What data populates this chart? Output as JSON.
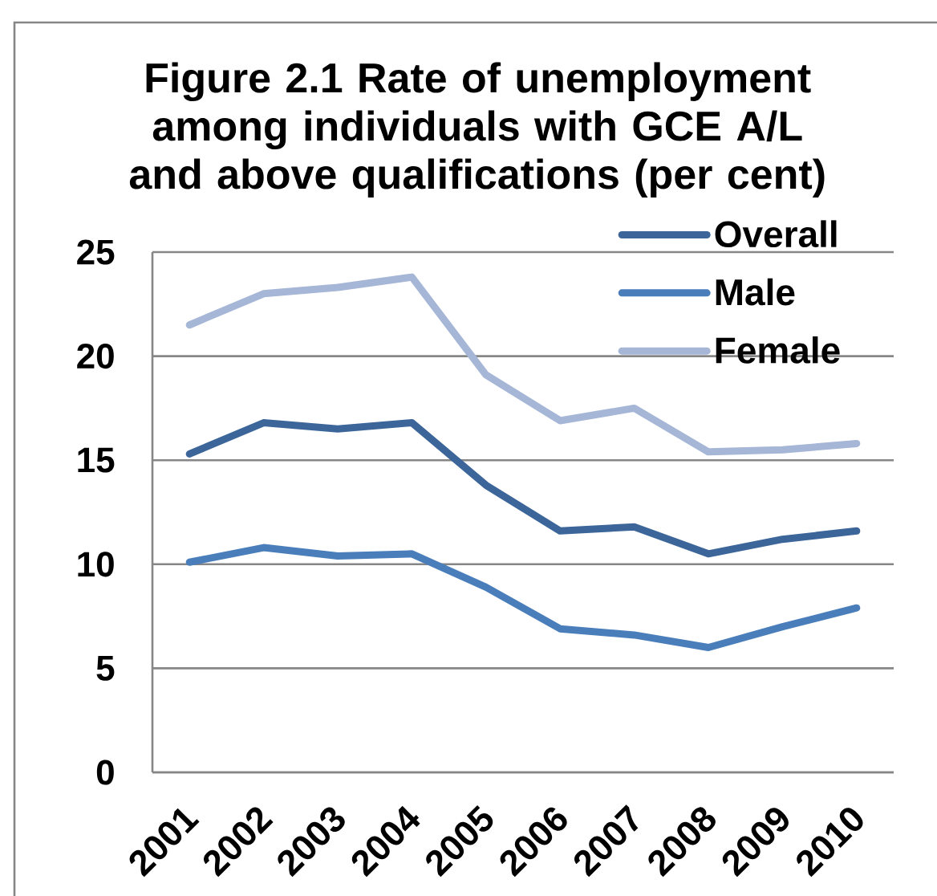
{
  "chart_data": {
    "type": "line",
    "title": "Figure 2.1 Rate of unemployment among individuals with GCE A/L and above qualifications (per cent)",
    "categories": [
      "2001",
      "2002",
      "2003",
      "2004",
      "2005",
      "2006",
      "2007",
      "2008",
      "2009",
      "2010"
    ],
    "series": [
      {
        "name": "Overall",
        "color": "#3c6699",
        "values": [
          15.3,
          16.8,
          16.5,
          16.8,
          13.8,
          11.6,
          11.8,
          10.5,
          11.2,
          11.6
        ]
      },
      {
        "name": "Male",
        "color": "#4a7ebb",
        "values": [
          10.1,
          10.8,
          10.4,
          10.5,
          8.9,
          6.9,
          6.6,
          6.0,
          7.0,
          7.9
        ]
      },
      {
        "name": "Female",
        "color": "#a5b6d7",
        "values": [
          21.5,
          23.0,
          23.3,
          23.8,
          19.1,
          16.9,
          17.5,
          15.4,
          15.5,
          15.8
        ]
      }
    ],
    "ylim": [
      0,
      25
    ],
    "yticks": [
      0,
      5,
      10,
      15,
      20,
      25
    ],
    "grid": "y",
    "legend": "top right"
  }
}
